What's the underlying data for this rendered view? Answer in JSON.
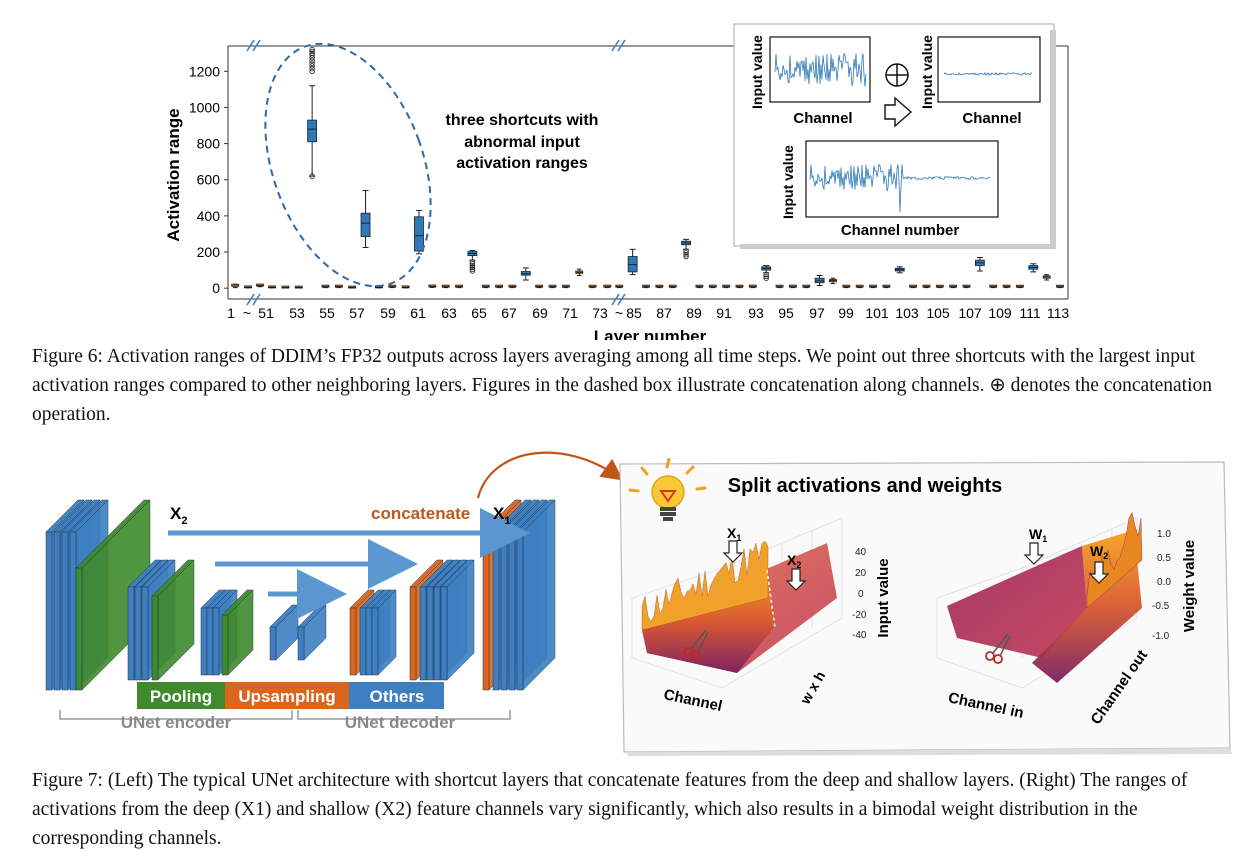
{
  "figure6": {
    "chart_data": {
      "type": "box",
      "xlabel": "Layer number",
      "ylabel": "Activation range",
      "yticks": [
        0,
        200,
        400,
        600,
        800,
        1000,
        1200
      ],
      "ylim": [
        -60,
        1340
      ],
      "tick_labels": [
        "1",
        "~",
        "51",
        "53",
        "55",
        "57",
        "59",
        "61",
        "63",
        "65",
        "67",
        "69",
        "71",
        "73",
        "~",
        "85",
        "87",
        "89",
        "91",
        "93",
        "95",
        "97",
        "99",
        "101",
        "103",
        "105",
        "107",
        "109",
        "111",
        "113"
      ],
      "boxes": [
        {
          "pos": 0.12,
          "min": 3,
          "q1": 8,
          "med": 11,
          "q3": 16,
          "max": 22,
          "color": "#e07b2a"
        },
        {
          "pos": 0.6,
          "min": 2,
          "q1": 4,
          "med": 5,
          "q3": 7,
          "max": 9,
          "color": "#e07b2a"
        },
        {
          "pos": 1.05,
          "min": 8,
          "q1": 12,
          "med": 14,
          "q3": 17,
          "max": 21,
          "color": "#e07b2a"
        },
        {
          "pos": 1.5,
          "min": 2,
          "q1": 4,
          "med": 5,
          "q3": 7,
          "max": 9,
          "color": "#e07b2a"
        },
        {
          "pos": 2.0,
          "min": 1,
          "q1": 3,
          "med": 4,
          "q3": 6,
          "max": 8,
          "color": "#e07b2a"
        },
        {
          "pos": 2.5,
          "min": 1,
          "q1": 3,
          "med": 4,
          "q3": 6,
          "max": 8,
          "color": "#e07b2a"
        },
        {
          "pos": 3.0,
          "min": 620,
          "q1": 810,
          "med": 880,
          "q3": 930,
          "max": 1120,
          "color": "#2f79b8",
          "outliers": [
            1200,
            1215,
            1230,
            1245,
            1260,
            1275,
            1290,
            1300,
            1310,
            1320,
            620
          ]
        },
        {
          "pos": 3.5,
          "min": 3,
          "q1": 6,
          "med": 8,
          "q3": 11,
          "max": 15,
          "color": "#e07b2a"
        },
        {
          "pos": 4.0,
          "min": 3,
          "q1": 6,
          "med": 8,
          "q3": 11,
          "max": 15,
          "color": "#e07b2a"
        },
        {
          "pos": 4.5,
          "min": 1,
          "q1": 3,
          "med": 4,
          "q3": 6,
          "max": 8,
          "color": "#e07b2a"
        },
        {
          "pos": 5.0,
          "min": 225,
          "q1": 285,
          "med": 360,
          "q3": 415,
          "max": 540,
          "color": "#2f79b8"
        },
        {
          "pos": 5.5,
          "min": 2,
          "q1": 4,
          "med": 5,
          "q3": 7,
          "max": 9,
          "color": "#e07b2a"
        },
        {
          "pos": 6.0,
          "min": 3,
          "q1": 6,
          "med": 8,
          "q3": 11,
          "max": 15,
          "color": "#e07b2a"
        },
        {
          "pos": 6.5,
          "min": 2,
          "q1": 4,
          "med": 5,
          "q3": 7,
          "max": 9,
          "color": "#e07b2a"
        },
        {
          "pos": 7.0,
          "min": 190,
          "q1": 205,
          "med": 290,
          "q3": 395,
          "max": 430,
          "color": "#2f79b8"
        },
        {
          "pos": 7.5,
          "min": 4,
          "q1": 7,
          "med": 9,
          "q3": 12,
          "max": 16,
          "color": "#e07b2a"
        },
        {
          "pos": 8.0,
          "min": 3,
          "q1": 6,
          "med": 8,
          "q3": 11,
          "max": 15,
          "color": "#e07b2a"
        },
        {
          "pos": 8.5,
          "min": 3,
          "q1": 6,
          "med": 8,
          "q3": 11,
          "max": 15,
          "color": "#e07b2a"
        },
        {
          "pos": 9.0,
          "min": 155,
          "q1": 180,
          "med": 192,
          "q3": 202,
          "max": 208,
          "color": "#2f79b8",
          "outliers": [
            95,
            105,
            115,
            125,
            135,
            145
          ]
        },
        {
          "pos": 9.5,
          "min": 3,
          "q1": 6,
          "med": 8,
          "q3": 11,
          "max": 15,
          "color": "#e07b2a"
        },
        {
          "pos": 10.0,
          "min": 3,
          "q1": 6,
          "med": 8,
          "q3": 11,
          "max": 15,
          "color": "#e07b2a"
        },
        {
          "pos": 10.5,
          "min": 3,
          "q1": 6,
          "med": 8,
          "q3": 11,
          "max": 15,
          "color": "#e07b2a"
        },
        {
          "pos": 11.0,
          "min": 45,
          "q1": 72,
          "med": 80,
          "q3": 92,
          "max": 112,
          "color": "#2f79b8"
        },
        {
          "pos": 11.5,
          "min": 3,
          "q1": 6,
          "med": 8,
          "q3": 11,
          "max": 15,
          "color": "#e07b2a"
        },
        {
          "pos": 12.0,
          "min": 3,
          "q1": 6,
          "med": 8,
          "q3": 11,
          "max": 15,
          "color": "#e07b2a"
        },
        {
          "pos": 12.5,
          "min": 3,
          "q1": 6,
          "med": 8,
          "q3": 11,
          "max": 15,
          "color": "#e07b2a"
        },
        {
          "pos": 13.0,
          "min": 70,
          "q1": 82,
          "med": 88,
          "q3": 95,
          "max": 105,
          "color": "#e07b2a"
        },
        {
          "pos": 13.5,
          "min": 3,
          "q1": 6,
          "med": 8,
          "q3": 11,
          "max": 15,
          "color": "#e07b2a"
        },
        {
          "pos": 14.05,
          "min": 3,
          "q1": 6,
          "med": 8,
          "q3": 11,
          "max": 15,
          "color": "#e07b2a"
        },
        {
          "pos": 14.5,
          "min": 3,
          "q1": 6,
          "med": 8,
          "q3": 11,
          "max": 15,
          "color": "#e07b2a"
        },
        {
          "pos": 15.0,
          "min": 75,
          "q1": 90,
          "med": 130,
          "q3": 175,
          "max": 215,
          "color": "#2f79b8"
        },
        {
          "pos": 15.5,
          "min": 3,
          "q1": 6,
          "med": 8,
          "q3": 11,
          "max": 15,
          "color": "#e07b2a"
        },
        {
          "pos": 16.0,
          "min": 3,
          "q1": 6,
          "med": 8,
          "q3": 11,
          "max": 15,
          "color": "#e07b2a"
        },
        {
          "pos": 16.5,
          "min": 3,
          "q1": 6,
          "med": 8,
          "q3": 11,
          "max": 15,
          "color": "#e07b2a"
        },
        {
          "pos": 17.0,
          "min": 215,
          "q1": 240,
          "med": 250,
          "q3": 260,
          "max": 270,
          "color": "#2f79b8",
          "outliers": [
            175,
            185,
            195,
            205
          ]
        },
        {
          "pos": 17.5,
          "min": 3,
          "q1": 6,
          "med": 8,
          "q3": 11,
          "max": 15,
          "color": "#e07b2a"
        },
        {
          "pos": 18.0,
          "min": 3,
          "q1": 6,
          "med": 8,
          "q3": 11,
          "max": 15,
          "color": "#e07b2a"
        },
        {
          "pos": 18.5,
          "min": 3,
          "q1": 6,
          "med": 8,
          "q3": 11,
          "max": 15,
          "color": "#e07b2a"
        },
        {
          "pos": 19.0,
          "min": 3,
          "q1": 6,
          "med": 8,
          "q3": 11,
          "max": 15,
          "color": "#e07b2a"
        },
        {
          "pos": 19.5,
          "min": 3,
          "q1": 6,
          "med": 8,
          "q3": 11,
          "max": 15,
          "color": "#e07b2a"
        },
        {
          "pos": 20.0,
          "min": 85,
          "q1": 100,
          "med": 110,
          "q3": 118,
          "max": 125,
          "color": "#2f79b8",
          "outliers": [
            55,
            65,
            75
          ]
        },
        {
          "pos": 20.5,
          "min": 3,
          "q1": 6,
          "med": 8,
          "q3": 11,
          "max": 15,
          "color": "#e07b2a"
        },
        {
          "pos": 21.0,
          "min": 3,
          "q1": 6,
          "med": 8,
          "q3": 11,
          "max": 15,
          "color": "#e07b2a"
        },
        {
          "pos": 21.5,
          "min": 3,
          "q1": 6,
          "med": 8,
          "q3": 11,
          "max": 15,
          "color": "#e07b2a"
        },
        {
          "pos": 22.0,
          "min": 15,
          "q1": 30,
          "med": 40,
          "q3": 55,
          "max": 70,
          "color": "#2f79b8"
        },
        {
          "pos": 22.5,
          "min": 25,
          "q1": 35,
          "med": 42,
          "q3": 48,
          "max": 55,
          "color": "#e07b2a"
        },
        {
          "pos": 23.0,
          "min": 3,
          "q1": 6,
          "med": 8,
          "q3": 11,
          "max": 15,
          "color": "#e07b2a"
        },
        {
          "pos": 23.5,
          "min": 3,
          "q1": 6,
          "med": 8,
          "q3": 11,
          "max": 15,
          "color": "#e07b2a"
        },
        {
          "pos": 24.0,
          "min": 3,
          "q1": 6,
          "med": 8,
          "q3": 11,
          "max": 15,
          "color": "#e07b2a"
        },
        {
          "pos": 24.5,
          "min": 3,
          "q1": 6,
          "med": 8,
          "q3": 11,
          "max": 15,
          "color": "#e07b2a"
        },
        {
          "pos": 25.0,
          "min": 85,
          "q1": 95,
          "med": 102,
          "q3": 110,
          "max": 118,
          "color": "#2f79b8"
        },
        {
          "pos": 25.5,
          "min": 3,
          "q1": 6,
          "med": 8,
          "q3": 11,
          "max": 15,
          "color": "#e07b2a"
        },
        {
          "pos": 26.0,
          "min": 3,
          "q1": 6,
          "med": 8,
          "q3": 11,
          "max": 15,
          "color": "#e07b2a"
        },
        {
          "pos": 26.5,
          "min": 3,
          "q1": 6,
          "med": 8,
          "q3": 11,
          "max": 15,
          "color": "#e07b2a"
        },
        {
          "pos": 27.0,
          "min": 3,
          "q1": 6,
          "med": 8,
          "q3": 11,
          "max": 15,
          "color": "#e07b2a"
        },
        {
          "pos": 27.5,
          "min": 3,
          "q1": 6,
          "med": 8,
          "q3": 11,
          "max": 15,
          "color": "#e07b2a"
        },
        {
          "pos": 28.0,
          "min": 95,
          "q1": 125,
          "med": 140,
          "q3": 155,
          "max": 170,
          "color": "#2f79b8"
        },
        {
          "pos": 28.5,
          "min": 3,
          "q1": 6,
          "med": 8,
          "q3": 11,
          "max": 15,
          "color": "#e07b2a"
        },
        {
          "pos": 29.0,
          "min": 3,
          "q1": 6,
          "med": 8,
          "q3": 11,
          "max": 15,
          "color": "#e07b2a"
        },
        {
          "pos": 29.5,
          "min": 3,
          "q1": 6,
          "med": 8,
          "q3": 11,
          "max": 15,
          "color": "#e07b2a"
        },
        {
          "pos": 30.0,
          "min": 90,
          "q1": 105,
          "med": 115,
          "q3": 125,
          "max": 135,
          "color": "#2f79b8"
        },
        {
          "pos": 30.5,
          "min": 45,
          "q1": 55,
          "med": 62,
          "q3": 68,
          "max": 75,
          "color": "#e07b2a"
        },
        {
          "pos": 31.0,
          "min": 3,
          "q1": 6,
          "med": 8,
          "q3": 11,
          "max": 15,
          "color": "#e07b2a"
        }
      ],
      "colors": {
        "shortcut": "#2f79b8",
        "normal": "#e07b2a"
      }
    },
    "annotation": [
      "three shortcuts with",
      "abnormal input",
      "activation ranges"
    ],
    "inset": {
      "ylabel_a": "Input value",
      "xlabel_a": "Channel",
      "ylabel_b": "Input value",
      "xlabel_b": "Channel",
      "ylabel_c": "Input value",
      "xlabel_c": "Channel number",
      "concat_symbol": "⊕"
    },
    "caption": "Figure 6: Activation ranges of DDIM’s FP32 outputs across layers averaging among all time steps. We point out three shortcuts with the largest input activation ranges compared to other neighboring layers. Figures in the dashed box illustrate concatenation along channels. ⊕ denotes the concatenation operation."
  },
  "figure7": {
    "unet": {
      "x2_label": "X",
      "x2_sub": "2",
      "concat_label": "concatenate",
      "x1_label": "X",
      "x1_sub": "1",
      "legend": [
        {
          "label": "Pooling",
          "color": "#3e8a2c"
        },
        {
          "label": "Upsampling",
          "color": "#d9651f"
        },
        {
          "label": "Others",
          "color": "#3d7fc1"
        }
      ],
      "encoder_label": "UNet encoder",
      "decoder_label": "UNet decoder"
    },
    "split": {
      "title": "Split activations and weights",
      "left": {
        "x1": "X",
        "x1_sub": "1",
        "x2": "X",
        "x2_sub": "2",
        "zlabel": "Input value",
        "zticks": [
          "40",
          "20",
          "0",
          "-20",
          "-40"
        ],
        "axis_channel": "Channel",
        "axis_wh": "w x h"
      },
      "right": {
        "w1": "W",
        "w1_sub": "1",
        "w2": "W",
        "w2_sub": "2",
        "zlabel": "Weight value",
        "zticks": [
          "1.0",
          "0.5",
          "0.0",
          "-0.5",
          "-1.0"
        ],
        "axis_in": "Channel in",
        "axis_out": "Channel out"
      }
    },
    "caption": "Figure 7: (Left) The typical UNet architecture with shortcut layers that concatenate features from the deep and shallow layers. (Right) The ranges of activations from the deep (X1) and shallow (X2) feature channels vary significantly, which also results in a bimodal weight distribution in the corresponding channels."
  }
}
